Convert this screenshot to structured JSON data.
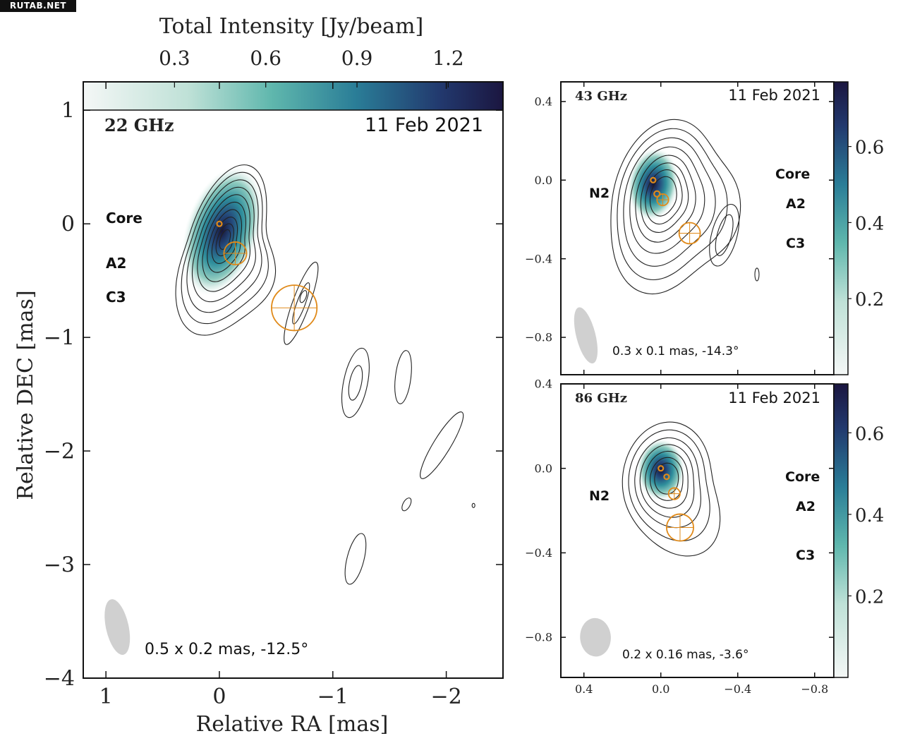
{
  "watermark": "RUTAB.NET",
  "colors": {
    "cmap_low": "#f4f7f6",
    "cmap_mid": "#3fa6a5",
    "cmap_high": "#1b1640",
    "contour": "#222222",
    "component": "#e08a1a",
    "beam": "#d0d0d0"
  },
  "chart_data": [
    {
      "type": "heatmap",
      "panel": "22 GHz",
      "freq_label": "22 GHz",
      "date": "11 Feb 2021",
      "xlabel": "Relative RA [mas]",
      "ylabel": "Relative DEC [mas]",
      "xlim": [
        1.2,
        -2.5
      ],
      "ylim": [
        -4,
        1.25
      ],
      "x_ticks": [
        1,
        0,
        -1,
        -2
      ],
      "x_tick_labels": [
        "1",
        "0",
        "−1",
        "−2"
      ],
      "y_ticks": [
        1,
        0,
        -1,
        -2,
        -3,
        -4
      ],
      "y_tick_labels": [
        "1",
        "0",
        "−1",
        "−2",
        "−3",
        "−4"
      ],
      "colorbar": {
        "label": "Total Intensity [Jy/beam]",
        "ticks": [
          0.3,
          0.6,
          0.9,
          1.2
        ],
        "tick_labels": [
          "0.3",
          "0.6",
          "0.9",
          "1.2"
        ],
        "range": [
          0,
          1.38
        ],
        "position": "top"
      },
      "legend_labels": [
        "Core",
        "A2",
        "C3"
      ],
      "beam_text": "0.5 x 0.2 mas, -12.5°",
      "beam": {
        "x": 0.9,
        "y": -3.55,
        "major": 0.5,
        "minor": 0.2,
        "pa": -12.5
      },
      "components": [
        {
          "name": "Core",
          "x": 0.0,
          "y": 0.0,
          "size": 0.03
        },
        {
          "name": "A2",
          "x": -0.14,
          "y": -0.26,
          "size": 0.2
        },
        {
          "name": "C3",
          "x": -0.66,
          "y": -0.74,
          "size": 0.4
        }
      ]
    },
    {
      "type": "heatmap",
      "panel": "43 GHz",
      "freq_label": "43 GHz",
      "date": "11 Feb 2021",
      "xlim": [
        0.52,
        -0.9
      ],
      "ylim": [
        -0.99,
        0.5
      ],
      "x_ticks": [
        0.4,
        0.0,
        -0.4,
        -0.8
      ],
      "y_ticks": [
        0.4,
        0.0,
        -0.4,
        -0.8
      ],
      "y_tick_labels": [
        "0.4",
        "0.0",
        "−0.4",
        "−0.8"
      ],
      "colorbar": {
        "ticks": [
          0.2,
          0.4,
          0.6
        ],
        "tick_labels": [
          "0.2",
          "0.4",
          "0.6"
        ],
        "range": [
          0,
          0.77
        ],
        "position": "right"
      },
      "legend_labels": [
        "N2",
        "Core",
        "A2",
        "C3"
      ],
      "beam_text": "0.3 x 0.1 mas, -14.3°",
      "beam": {
        "x": 0.39,
        "y": -0.79,
        "major": 0.3,
        "minor": 0.1,
        "pa": -14.3
      },
      "components": [
        {
          "name": "Core",
          "x": 0.04,
          "y": 0.0,
          "size": 0.02
        },
        {
          "name": "N2",
          "x": 0.02,
          "y": -0.07,
          "size": 0.03
        },
        {
          "name": "A2",
          "x": -0.01,
          "y": -0.1,
          "size": 0.06
        },
        {
          "name": "C3",
          "x": -0.15,
          "y": -0.27,
          "size": 0.11
        }
      ]
    },
    {
      "type": "heatmap",
      "panel": "86 GHz",
      "freq_label": "86 GHz",
      "date": "11 Feb 2021",
      "xlim": [
        0.52,
        -0.9
      ],
      "ylim": [
        -0.99,
        0.4
      ],
      "x_ticks": [
        0.4,
        0.0,
        -0.4,
        -0.8
      ],
      "x_tick_labels": [
        "0.4",
        "0.0",
        "−0.4",
        "−0.8"
      ],
      "y_ticks": [
        0.4,
        0.0,
        -0.4,
        -0.8
      ],
      "y_tick_labels": [
        "0.4",
        "0.0",
        "−0.4",
        "−0.8"
      ],
      "colorbar": {
        "ticks": [
          0.2,
          0.4,
          0.6
        ],
        "tick_labels": [
          "0.2",
          "0.4",
          "0.6"
        ],
        "range": [
          0,
          0.72
        ],
        "position": "right"
      },
      "legend_labels": [
        "N2",
        "Core",
        "A2",
        "C3"
      ],
      "beam_text": "0.2 x 0.16 mas, -3.6°",
      "beam": {
        "x": 0.34,
        "y": -0.8,
        "major": 0.2,
        "minor": 0.16,
        "pa": -3.6
      },
      "components": [
        {
          "name": "Core",
          "x": 0.0,
          "y": 0.0,
          "size": 0.02
        },
        {
          "name": "N2",
          "x": -0.03,
          "y": -0.04,
          "size": 0.02
        },
        {
          "name": "A2",
          "x": -0.07,
          "y": -0.12,
          "size": 0.06
        },
        {
          "name": "C3",
          "x": -0.1,
          "y": -0.28,
          "size": 0.14
        }
      ]
    }
  ]
}
